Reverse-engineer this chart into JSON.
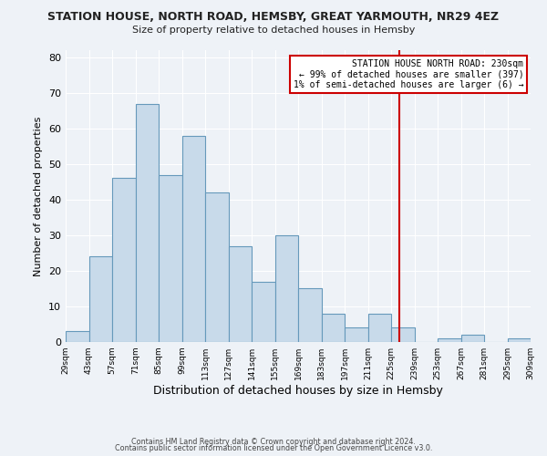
{
  "title": "STATION HOUSE, NORTH ROAD, HEMSBY, GREAT YARMOUTH, NR29 4EZ",
  "subtitle": "Size of property relative to detached houses in Hemsby",
  "xlabel": "Distribution of detached houses by size in Hemsby",
  "ylabel": "Number of detached properties",
  "bar_color": "#c8daea",
  "bar_edge_color": "#6699bb",
  "background_color": "#eef2f7",
  "grid_color": "#ffffff",
  "bins": [
    29,
    43,
    57,
    71,
    85,
    99,
    113,
    127,
    141,
    155,
    169,
    183,
    197,
    211,
    225,
    239,
    253,
    267,
    281,
    295,
    309
  ],
  "counts": [
    3,
    24,
    46,
    67,
    47,
    58,
    42,
    27,
    17,
    30,
    15,
    8,
    4,
    8,
    4,
    0,
    1,
    2,
    0,
    1
  ],
  "vline_x": 230,
  "vline_color": "#cc0000",
  "annotation_title": "STATION HOUSE NORTH ROAD: 230sqm",
  "annotation_line1": "← 99% of detached houses are smaller (397)",
  "annotation_line2": "1% of semi-detached houses are larger (6) →",
  "annotation_box_edge_color": "#cc0000",
  "annotation_box_face_color": "#ffffff",
  "ylim": [
    0,
    82
  ],
  "yticks": [
    0,
    10,
    20,
    30,
    40,
    50,
    60,
    70,
    80
  ],
  "footer1": "Contains HM Land Registry data © Crown copyright and database right 2024.",
  "footer2": "Contains public sector information licensed under the Open Government Licence v3.0."
}
